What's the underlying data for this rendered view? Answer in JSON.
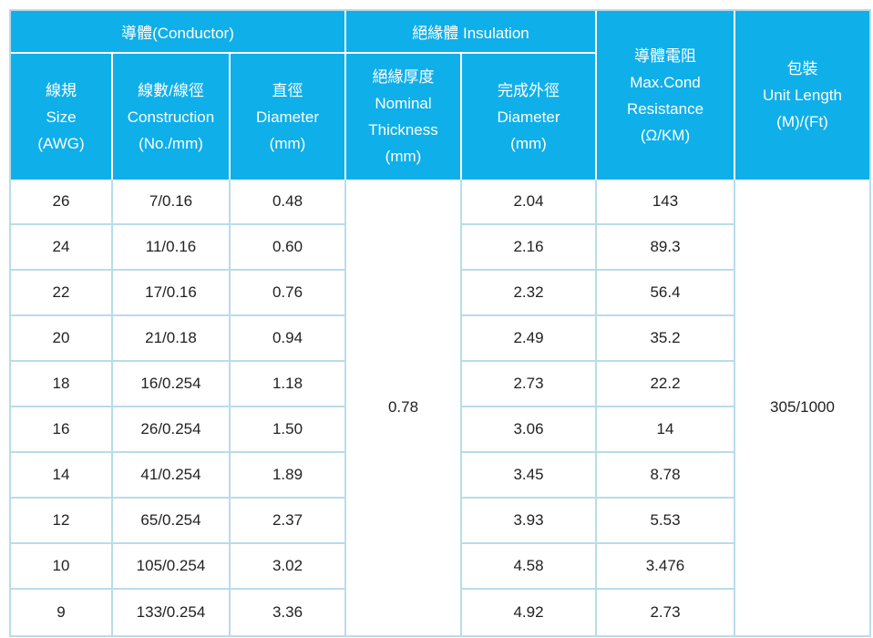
{
  "colors": {
    "header_bg": "#0fafe9",
    "header_text": "#ffffff",
    "body_text": "#222222",
    "grid_border": "#b9dcea",
    "header_divider": "#ffffff"
  },
  "table": {
    "header_groups": [
      {
        "label": "導體(Conductor)",
        "colspan": 3
      },
      {
        "label": "絕緣體 Insulation",
        "colspan": 2
      }
    ],
    "sub_headers": [
      {
        "lines": [
          "線規",
          "Size",
          "(AWG)"
        ]
      },
      {
        "lines": [
          "線數/線徑",
          "Construction",
          "(No./mm)"
        ]
      },
      {
        "lines": [
          "直徑",
          "Diameter",
          "(mm)"
        ]
      },
      {
        "lines": [
          "絕緣厚度",
          "Nominal",
          "Thickness",
          "(mm)"
        ]
      },
      {
        "lines": [
          "完成外徑",
          "Diameter",
          "(mm)"
        ]
      }
    ],
    "resistance_header": {
      "lines": [
        "導體電阻",
        "Max.Cond",
        "Resistance",
        "(Ω/KM)"
      ]
    },
    "package_header": {
      "lines": [
        "包裝",
        "Unit Length",
        "(M)/(Ft)"
      ]
    },
    "merged": {
      "insulation_thickness": "0.78",
      "unit_length": "305/1000"
    },
    "rows": [
      {
        "size": "26",
        "construction": "7/0.16",
        "diameter": "0.48",
        "outer_diameter": "2.04",
        "resistance": "143"
      },
      {
        "size": "24",
        "construction": "11/0.16",
        "diameter": "0.60",
        "outer_diameter": "2.16",
        "resistance": "89.3"
      },
      {
        "size": "22",
        "construction": "17/0.16",
        "diameter": "0.76",
        "outer_diameter": "2.32",
        "resistance": "56.4"
      },
      {
        "size": "20",
        "construction": "21/0.18",
        "diameter": "0.94",
        "outer_diameter": "2.49",
        "resistance": "35.2"
      },
      {
        "size": "18",
        "construction": "16/0.254",
        "diameter": "1.18",
        "outer_diameter": "2.73",
        "resistance": "22.2"
      },
      {
        "size": "16",
        "construction": "26/0.254",
        "diameter": "1.50",
        "outer_diameter": "3.06",
        "resistance": "14"
      },
      {
        "size": "14",
        "construction": "41/0.254",
        "diameter": "1.89",
        "outer_diameter": "3.45",
        "resistance": "8.78"
      },
      {
        "size": "12",
        "construction": "65/0.254",
        "diameter": "2.37",
        "outer_diameter": "3.93",
        "resistance": "5.53"
      },
      {
        "size": "10",
        "construction": "105/0.254",
        "diameter": "3.02",
        "outer_diameter": "4.58",
        "resistance": "3.476"
      },
      {
        "size": "9",
        "construction": "133/0.254",
        "diameter": "3.36",
        "outer_diameter": "4.92",
        "resistance": "2.73"
      }
    ]
  }
}
